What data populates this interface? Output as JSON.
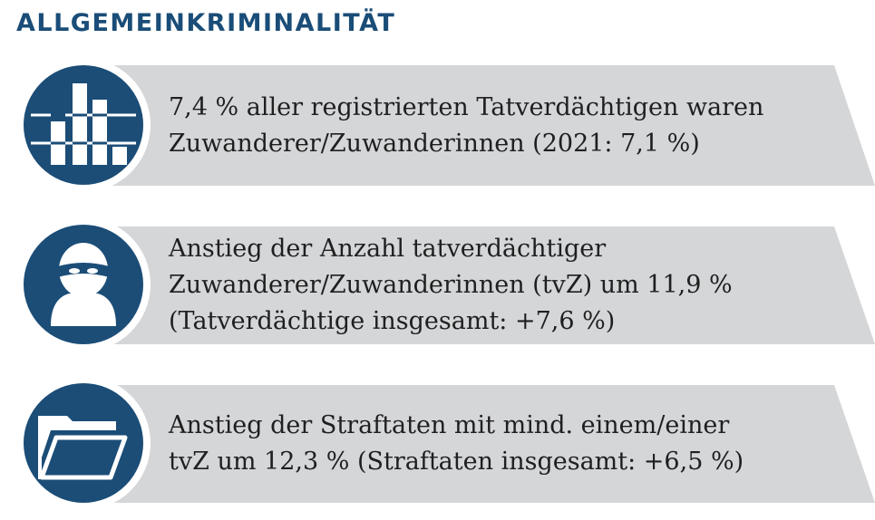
{
  "title": "ALLGEMEINKRIMINALITÄT",
  "items": [
    {
      "icon": "bar-chart-icon",
      "lines": [
        "7,4 % aller registrierten Tatverdächtigen waren",
        "Zuwanderer/Zuwanderinnen (2021: 7,1 %)"
      ]
    },
    {
      "icon": "masked-person-icon",
      "lines": [
        "Anstieg der Anzahl tatverdächtiger",
        "Zuwanderer/Zuwanderinnen (tvZ) um 11,9 %",
        "(Tatverdächtige insgesamt: +7,6 %)"
      ]
    },
    {
      "icon": "folder-icon",
      "lines": [
        "Anstieg der Straftaten mit mind. einem/einer",
        "tvZ um 12,3 % (Straftaten insgesamt: +6,5 %)"
      ]
    }
  ],
  "colors": {
    "accent": "#1b4d77",
    "band": "#d5d6d8",
    "text": "#1f1f1f"
  }
}
